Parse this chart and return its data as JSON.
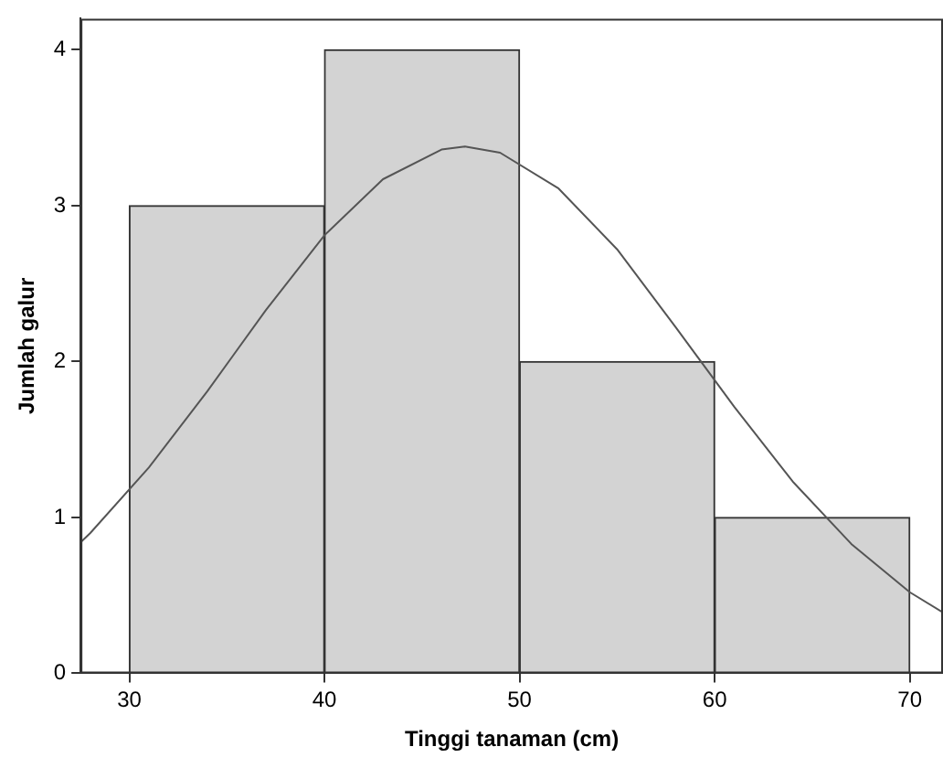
{
  "chart_data": {
    "type": "histogram",
    "xlabel": "Tinggi tanaman (cm)",
    "ylabel": "Jumlah galur",
    "bins": [
      30,
      40,
      50,
      60,
      70
    ],
    "values": [
      3,
      4,
      2,
      1
    ],
    "color": "#d3d3d3",
    "xlim": [
      27.5,
      71.7
    ],
    "xticks": [
      30,
      40,
      50,
      60,
      70
    ],
    "ylim": [
      0,
      4.2
    ],
    "yticks": [
      0,
      1,
      2,
      3,
      4
    ],
    "grid": false,
    "legend": false,
    "series": [
      {
        "type": "line",
        "color": "#555555",
        "x": [
          27.5,
          28,
          31,
          34,
          37,
          40,
          43,
          46,
          47.2,
          49,
          52,
          55,
          58,
          61,
          64,
          67,
          70,
          71.7
        ],
        "values": [
          0.84,
          0.9,
          1.32,
          1.81,
          2.33,
          2.81,
          3.17,
          3.36,
          3.38,
          3.34,
          3.11,
          2.72,
          2.22,
          1.71,
          1.23,
          0.83,
          0.52,
          0.39
        ]
      }
    ]
  }
}
